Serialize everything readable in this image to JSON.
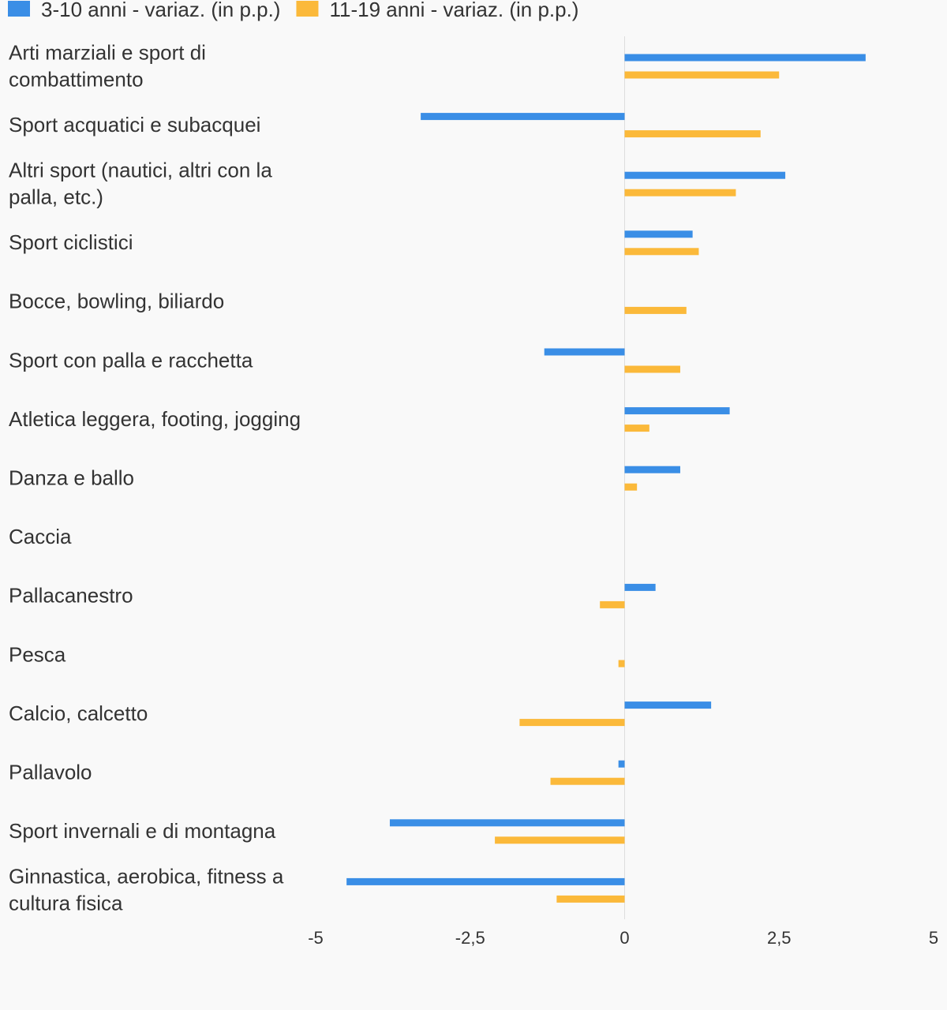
{
  "chart_data": {
    "type": "bar",
    "orientation": "horizontal",
    "categories": [
      "Arti marziali e sport di combattimento",
      "Sport acquatici e subacquei",
      "Altri sport (nautici, altri con la palla, etc.)",
      "Sport ciclistici",
      "Bocce, bowling, biliardo",
      "Sport con palla e racchetta",
      "Atletica leggera, footing, jogging",
      "Danza e ballo",
      "Caccia",
      "Pallacanestro",
      "Pesca",
      "Calcio, calcetto",
      "Pallavolo",
      "Sport invernali e di montagna",
      "Ginnastica, aerobica, fitness a cultura fisica"
    ],
    "series": [
      {
        "name": "3-10 anni - variaz. (in p.p.)",
        "color": "#3a8ee6",
        "values": [
          3.9,
          -3.3,
          2.6,
          1.1,
          0,
          -1.3,
          1.7,
          0.9,
          0,
          0.5,
          0,
          1.4,
          -0.1,
          -3.8,
          -4.5
        ]
      },
      {
        "name": "11-19 anni - variaz. (in p.p.)",
        "color": "#fbb93a",
        "values": [
          2.5,
          2.2,
          1.8,
          1.2,
          1.0,
          0.9,
          0.4,
          0.2,
          0,
          -0.4,
          -0.1,
          -1.7,
          -1.2,
          -2.1,
          -1.1
        ]
      }
    ],
    "xlim": [
      -5,
      5
    ],
    "xticks": [
      -5,
      -2.5,
      0,
      2.5,
      5
    ],
    "xtick_labels": [
      "-5",
      "-2,5",
      "0",
      "2,5",
      "5"
    ],
    "legend_position": "top-left",
    "grid": false,
    "title": "",
    "xlabel": "",
    "ylabel": ""
  }
}
